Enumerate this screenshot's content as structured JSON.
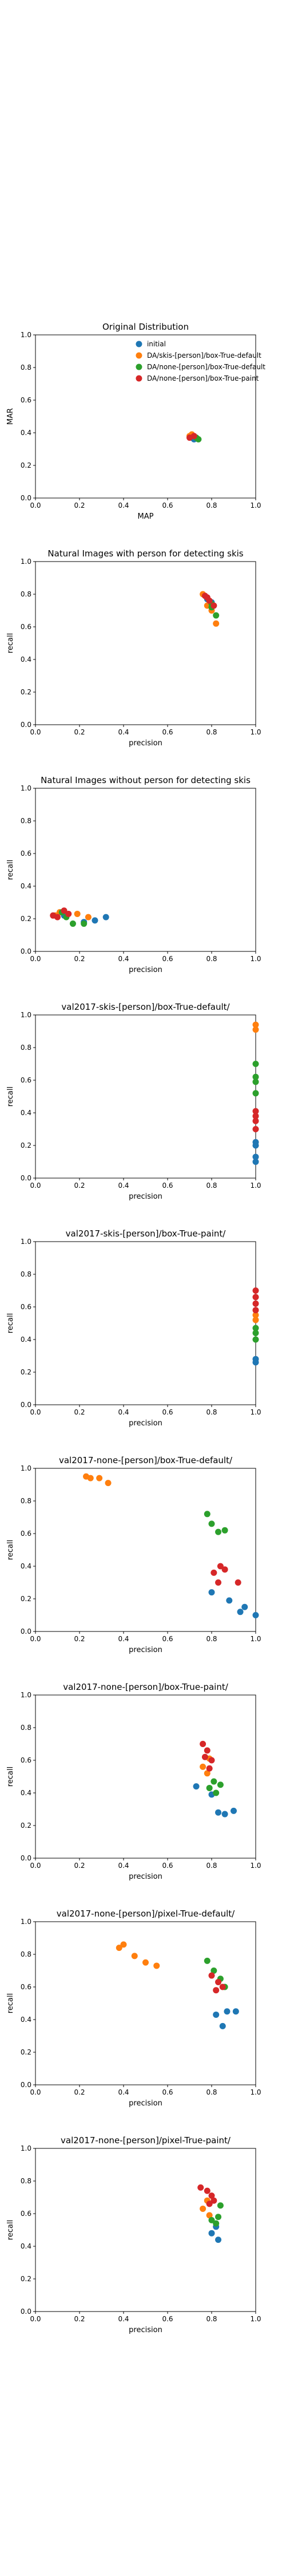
{
  "chart_data": [
    {
      "type": "scatter",
      "title": "Original Distribution",
      "xlabel": "MAP",
      "ylabel": "MAR",
      "xlim": [
        0,
        1
      ],
      "ylim": [
        0,
        1
      ],
      "xticks": [
        "0.0",
        "0.2",
        "0.4",
        "0.6",
        "0.8",
        "1.0"
      ],
      "yticks": [
        "0.0",
        "0.2",
        "0.4",
        "0.6",
        "0.8",
        "1.0"
      ],
      "grid": false,
      "legend": "top-right",
      "series": [
        {
          "name": "initial",
          "color": "#1f77b4",
          "points": [
            [
              0.71,
              0.37
            ],
            [
              0.72,
              0.36
            ]
          ]
        },
        {
          "name": "DA/skis-[person]/box-True-default",
          "color": "#ff7f0e",
          "points": [
            [
              0.7,
              0.38
            ],
            [
              0.71,
              0.39
            ]
          ]
        },
        {
          "name": "DA/none-[person]/box-True-default",
          "color": "#2ca02c",
          "points": [
            [
              0.73,
              0.37
            ],
            [
              0.74,
              0.36
            ]
          ]
        },
        {
          "name": "DA/none-[person]/box-True-paint",
          "color": "#d62728",
          "points": [
            [
              0.72,
              0.38
            ],
            [
              0.7,
              0.37
            ]
          ]
        }
      ]
    },
    {
      "type": "scatter",
      "title": "Natural Images with person for detecting skis",
      "xlabel": "precision",
      "ylabel": "recall",
      "xlim": [
        0,
        1
      ],
      "ylim": [
        0,
        1
      ],
      "xticks": [
        "0.0",
        "0.2",
        "0.4",
        "0.6",
        "0.8",
        "1.0"
      ],
      "yticks": [
        "0.0",
        "0.2",
        "0.4",
        "0.6",
        "0.8",
        "1.0"
      ],
      "grid": false,
      "series": [
        {
          "color": "#1f77b4",
          "points": [
            [
              0.78,
              0.77
            ],
            [
              0.8,
              0.75
            ]
          ]
        },
        {
          "color": "#ff7f0e",
          "points": [
            [
              0.76,
              0.8
            ],
            [
              0.78,
              0.73
            ],
            [
              0.82,
              0.62
            ],
            [
              0.8,
              0.7
            ]
          ]
        },
        {
          "color": "#2ca02c",
          "points": [
            [
              0.8,
              0.72
            ],
            [
              0.82,
              0.67
            ],
            [
              0.8,
              0.74
            ]
          ]
        },
        {
          "color": "#d62728",
          "points": [
            [
              0.77,
              0.79
            ],
            [
              0.79,
              0.76
            ],
            [
              0.81,
              0.73
            ],
            [
              0.78,
              0.78
            ]
          ]
        }
      ]
    },
    {
      "type": "scatter",
      "title": "Natural Images without person for detecting skis",
      "xlabel": "precision",
      "ylabel": "recall",
      "xlim": [
        0,
        1
      ],
      "ylim": [
        0,
        1
      ],
      "xticks": [
        "0.0",
        "0.2",
        "0.4",
        "0.6",
        "0.8",
        "1.0"
      ],
      "yticks": [
        "0.0",
        "0.2",
        "0.4",
        "0.6",
        "0.8",
        "1.0"
      ],
      "grid": false,
      "series": [
        {
          "color": "#1f77b4",
          "points": [
            [
              0.27,
              0.19
            ],
            [
              0.32,
              0.21
            ],
            [
              0.22,
              0.18
            ],
            [
              0.13,
              0.22
            ]
          ]
        },
        {
          "color": "#ff7f0e",
          "points": [
            [
              0.11,
              0.24
            ],
            [
              0.19,
              0.23
            ],
            [
              0.24,
              0.21
            ],
            [
              0.09,
              0.22
            ]
          ]
        },
        {
          "color": "#2ca02c",
          "points": [
            [
              0.17,
              0.17
            ],
            [
              0.22,
              0.17
            ],
            [
              0.14,
              0.21
            ],
            [
              0.12,
              0.24
            ]
          ]
        },
        {
          "color": "#d62728",
          "points": [
            [
              0.08,
              0.22
            ],
            [
              0.1,
              0.21
            ],
            [
              0.15,
              0.23
            ],
            [
              0.13,
              0.25
            ]
          ]
        }
      ]
    },
    {
      "type": "scatter",
      "title": "val2017-skis-[person]/box-True-default/",
      "xlabel": "precision",
      "ylabel": "recall",
      "xlim": [
        0,
        1
      ],
      "ylim": [
        0,
        1
      ],
      "xticks": [
        "0.0",
        "0.2",
        "0.4",
        "0.6",
        "0.8",
        "1.0"
      ],
      "yticks": [
        "0.0",
        "0.2",
        "0.4",
        "0.6",
        "0.8",
        "1.0"
      ],
      "grid": false,
      "series": [
        {
          "color": "#1f77b4",
          "points": [
            [
              1.0,
              0.1
            ],
            [
              1.0,
              0.13
            ],
            [
              1.0,
              0.2
            ],
            [
              1.0,
              0.22
            ]
          ]
        },
        {
          "color": "#ff7f0e",
          "points": [
            [
              1.0,
              0.94
            ],
            [
              1.0,
              0.91
            ]
          ]
        },
        {
          "color": "#2ca02c",
          "points": [
            [
              1.0,
              0.59
            ],
            [
              1.0,
              0.62
            ],
            [
              1.0,
              0.7
            ],
            [
              1.0,
              0.52
            ]
          ]
        },
        {
          "color": "#d62728",
          "points": [
            [
              1.0,
              0.3
            ],
            [
              1.0,
              0.38
            ],
            [
              1.0,
              0.41
            ],
            [
              1.0,
              0.35
            ]
          ]
        }
      ]
    },
    {
      "type": "scatter",
      "title": "val2017-skis-[person]/box-True-paint/",
      "xlabel": "precision",
      "ylabel": "recall",
      "xlim": [
        0,
        1
      ],
      "ylim": [
        0,
        1
      ],
      "xticks": [
        "0.0",
        "0.2",
        "0.4",
        "0.6",
        "0.8",
        "1.0"
      ],
      "yticks": [
        "0.0",
        "0.2",
        "0.4",
        "0.6",
        "0.8",
        "1.0"
      ],
      "grid": false,
      "series": [
        {
          "color": "#1f77b4",
          "points": [
            [
              1.0,
              0.26
            ],
            [
              1.0,
              0.28
            ]
          ]
        },
        {
          "color": "#ff7f0e",
          "points": [
            [
              1.0,
              0.52
            ],
            [
              1.0,
              0.55
            ]
          ]
        },
        {
          "color": "#2ca02c",
          "points": [
            [
              1.0,
              0.4
            ],
            [
              1.0,
              0.44
            ],
            [
              1.0,
              0.47
            ]
          ]
        },
        {
          "color": "#d62728",
          "points": [
            [
              1.0,
              0.58
            ],
            [
              1.0,
              0.62
            ],
            [
              1.0,
              0.66
            ],
            [
              1.0,
              0.7
            ]
          ]
        }
      ]
    },
    {
      "type": "scatter",
      "title": "val2017-none-[person]/box-True-default/",
      "xlabel": "precision",
      "ylabel": "recall",
      "xlim": [
        0,
        1
      ],
      "ylim": [
        0,
        1
      ],
      "xticks": [
        "0.0",
        "0.2",
        "0.4",
        "0.6",
        "0.8",
        "1.0"
      ],
      "yticks": [
        "0.0",
        "0.2",
        "0.4",
        "0.6",
        "0.8",
        "1.0"
      ],
      "grid": false,
      "series": [
        {
          "color": "#1f77b4",
          "points": [
            [
              0.8,
              0.24
            ],
            [
              0.88,
              0.19
            ],
            [
              0.93,
              0.12
            ],
            [
              0.95,
              0.15
            ],
            [
              1.0,
              0.1
            ]
          ]
        },
        {
          "color": "#ff7f0e",
          "points": [
            [
              0.23,
              0.95
            ],
            [
              0.25,
              0.94
            ],
            [
              0.29,
              0.94
            ],
            [
              0.33,
              0.91
            ]
          ]
        },
        {
          "color": "#2ca02c",
          "points": [
            [
              0.78,
              0.72
            ],
            [
              0.8,
              0.66
            ],
            [
              0.83,
              0.61
            ],
            [
              0.86,
              0.62
            ]
          ]
        },
        {
          "color": "#d62728",
          "points": [
            [
              0.81,
              0.36
            ],
            [
              0.84,
              0.4
            ],
            [
              0.86,
              0.38
            ],
            [
              0.92,
              0.3
            ],
            [
              0.83,
              0.3
            ]
          ]
        }
      ]
    },
    {
      "type": "scatter",
      "title": "val2017-none-[person]/box-True-paint/",
      "xlabel": "precision",
      "ylabel": "recall",
      "xlim": [
        0,
        1
      ],
      "ylim": [
        0,
        1
      ],
      "xticks": [
        "0.0",
        "0.2",
        "0.4",
        "0.6",
        "0.8",
        "1.0"
      ],
      "yticks": [
        "0.0",
        "0.2",
        "0.4",
        "0.6",
        "0.8",
        "1.0"
      ],
      "grid": false,
      "series": [
        {
          "color": "#1f77b4",
          "points": [
            [
              0.73,
              0.44
            ],
            [
              0.8,
              0.39
            ],
            [
              0.83,
              0.28
            ],
            [
              0.86,
              0.27
            ],
            [
              0.9,
              0.29
            ]
          ]
        },
        {
          "color": "#ff7f0e",
          "points": [
            [
              0.76,
              0.56
            ],
            [
              0.78,
              0.52
            ],
            [
              0.79,
              0.61
            ]
          ]
        },
        {
          "color": "#2ca02c",
          "points": [
            [
              0.79,
              0.43
            ],
            [
              0.81,
              0.47
            ],
            [
              0.84,
              0.45
            ],
            [
              0.82,
              0.4
            ]
          ]
        },
        {
          "color": "#d62728",
          "points": [
            [
              0.76,
              0.7
            ],
            [
              0.78,
              0.66
            ],
            [
              0.8,
              0.6
            ],
            [
              0.77,
              0.62
            ],
            [
              0.79,
              0.55
            ]
          ]
        }
      ]
    },
    {
      "type": "scatter",
      "title": "val2017-none-[person]/pixel-True-default/",
      "xlabel": "precision",
      "ylabel": "recall",
      "xlim": [
        0,
        1
      ],
      "ylim": [
        0,
        1
      ],
      "xticks": [
        "0.0",
        "0.2",
        "0.4",
        "0.6",
        "0.8",
        "1.0"
      ],
      "yticks": [
        "0.0",
        "0.2",
        "0.4",
        "0.6",
        "0.8",
        "1.0"
      ],
      "grid": false,
      "series": [
        {
          "color": "#1f77b4",
          "points": [
            [
              0.82,
              0.43
            ],
            [
              0.85,
              0.36
            ],
            [
              0.87,
              0.45
            ],
            [
              0.91,
              0.45
            ]
          ]
        },
        {
          "color": "#ff7f0e",
          "points": [
            [
              0.38,
              0.84
            ],
            [
              0.4,
              0.86
            ],
            [
              0.45,
              0.79
            ],
            [
              0.5,
              0.75
            ],
            [
              0.55,
              0.73
            ]
          ]
        },
        {
          "color": "#2ca02c",
          "points": [
            [
              0.78,
              0.76
            ],
            [
              0.81,
              0.7
            ],
            [
              0.84,
              0.65
            ],
            [
              0.86,
              0.6
            ]
          ]
        },
        {
          "color": "#d62728",
          "points": [
            [
              0.8,
              0.67
            ],
            [
              0.83,
              0.63
            ],
            [
              0.85,
              0.6
            ],
            [
              0.82,
              0.58
            ]
          ]
        }
      ]
    },
    {
      "type": "scatter",
      "title": "val2017-none-[person]/pixel-True-paint/",
      "xlabel": "precision",
      "ylabel": "recall",
      "xlim": [
        0,
        1
      ],
      "ylim": [
        0,
        1
      ],
      "xticks": [
        "0.0",
        "0.2",
        "0.4",
        "0.6",
        "0.8",
        "1.0"
      ],
      "yticks": [
        "0.0",
        "0.2",
        "0.4",
        "0.6",
        "0.8",
        "1.0"
      ],
      "grid": false,
      "series": [
        {
          "color": "#1f77b4",
          "points": [
            [
              0.8,
              0.48
            ],
            [
              0.83,
              0.44
            ],
            [
              0.82,
              0.52
            ]
          ]
        },
        {
          "color": "#ff7f0e",
          "points": [
            [
              0.76,
              0.63
            ],
            [
              0.78,
              0.68
            ],
            [
              0.79,
              0.59
            ]
          ]
        },
        {
          "color": "#2ca02c",
          "points": [
            [
              0.8,
              0.56
            ],
            [
              0.83,
              0.58
            ],
            [
              0.84,
              0.65
            ],
            [
              0.82,
              0.54
            ]
          ]
        },
        {
          "color": "#d62728",
          "points": [
            [
              0.75,
              0.76
            ],
            [
              0.78,
              0.74
            ],
            [
              0.8,
              0.71
            ],
            [
              0.81,
              0.68
            ],
            [
              0.79,
              0.66
            ]
          ]
        }
      ]
    }
  ]
}
